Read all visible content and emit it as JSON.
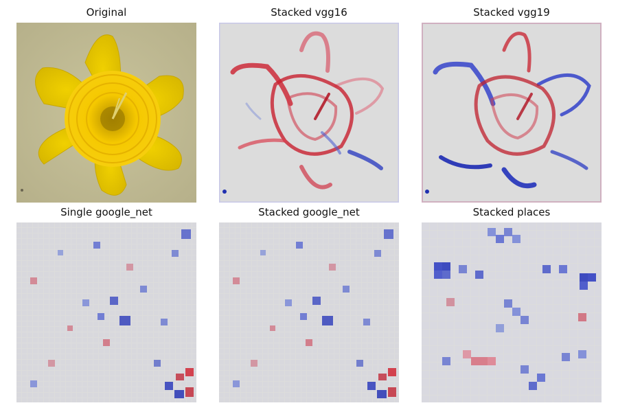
{
  "panels": [
    {
      "title": "Original"
    },
    {
      "title": "Stacked vgg16"
    },
    {
      "title": "Stacked vgg19"
    },
    {
      "title": "Single google_net"
    },
    {
      "title": "Stacked google_net"
    },
    {
      "title": "Stacked places"
    }
  ],
  "colors": {
    "background": "#d8d8d8",
    "positive": "#d40000",
    "negative": "#0000d4",
    "petal": "#e6c40a",
    "trumpet": "#f2c400",
    "original_bg": "#c8c39a"
  }
}
